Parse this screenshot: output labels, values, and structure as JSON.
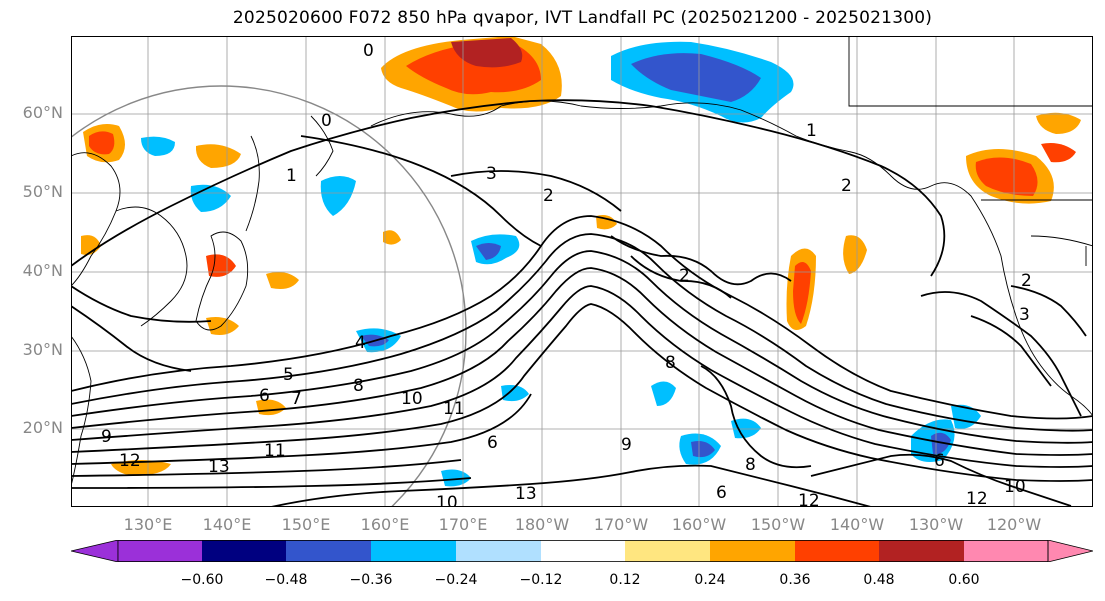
{
  "title": "2025020600 F072 850 hPa qvapor, IVT Landfall PC (2025021200 - 2025021300)",
  "lat_labels": [
    "60°N",
    "50°N",
    "40°N",
    "30°N",
    "20°N"
  ],
  "lon_labels": [
    "130°E",
    "140°E",
    "150°E",
    "160°E",
    "170°E",
    "180°W",
    "170°W",
    "160°W",
    "150°W",
    "140°W",
    "130°W",
    "120°W"
  ],
  "colorbar": {
    "tick_labels": [
      "−0.60",
      "−0.48",
      "−0.36",
      "−0.24",
      "−0.12",
      "0.12",
      "0.24",
      "0.36",
      "0.48",
      "0.60"
    ],
    "colors": [
      "#9b30d9",
      "#000080",
      "#3355cc",
      "#00bfff",
      "#b0e0ff",
      "#ffffff",
      "#ffe680",
      "#ffa500",
      "#ff4000",
      "#b22222",
      "#ff88b0"
    ]
  },
  "contour_labels": [
    "0",
    "0",
    "1",
    "1",
    "2",
    "2",
    "2",
    "3",
    "4",
    "5",
    "6",
    "6",
    "6",
    "7",
    "8",
    "8",
    "8",
    "9",
    "9",
    "10",
    "10",
    "11",
    "11",
    "12",
    "12",
    "12",
    "13",
    "13",
    "2",
    "3",
    "6",
    "10"
  ],
  "colors": {
    "coast": "#000000",
    "grid": "#999999",
    "contour": "#000000",
    "neg_strong": "#3355cc",
    "neg_mid": "#00bfff",
    "neg_weak": "#b0e0ff",
    "pos_weak": "#ffe680",
    "pos_mid": "#ffa500",
    "pos_strong": "#ff4000",
    "pos_max": "#b22222"
  }
}
